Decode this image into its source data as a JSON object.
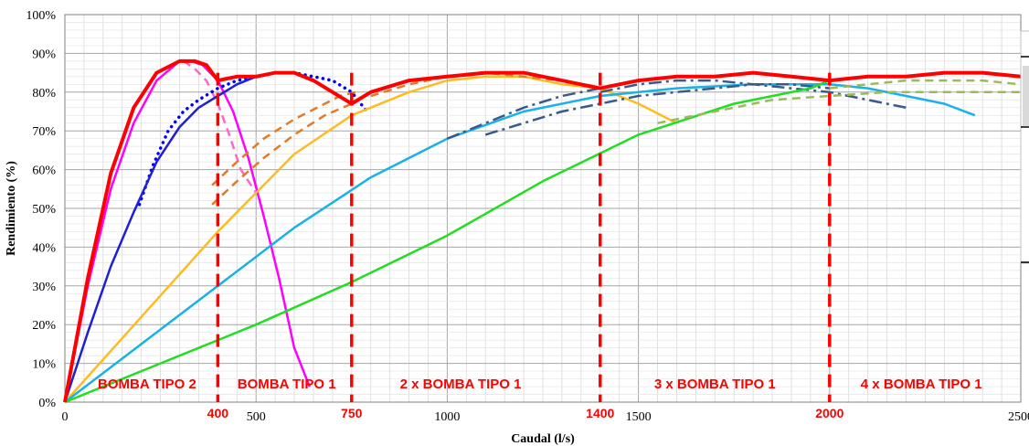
{
  "chart_data": {
    "type": "line",
    "xlabel": "Caudal (l/s)",
    "ylabel": "Rendimiento (%)",
    "xlim": [
      0,
      2500
    ],
    "ylim": [
      0,
      100
    ],
    "x_ticks": [
      0,
      500,
      1000,
      1500,
      2000,
      2500
    ],
    "y_ticks": [
      0,
      10,
      20,
      30,
      40,
      50,
      60,
      70,
      80,
      90,
      100
    ],
    "y_tick_format": "%",
    "grid": true,
    "vertical_markers": [
      {
        "x": 400,
        "label": "400"
      },
      {
        "x": 750,
        "label": "750"
      },
      {
        "x": 1400,
        "label": "1400"
      },
      {
        "x": 2000,
        "label": "2000"
      }
    ],
    "regions": [
      {
        "label": "BOMBA TIPO 2",
        "x_center": 215
      },
      {
        "label": "BOMBA TIPO 1",
        "x_center": 580
      },
      {
        "label": "2 x BOMBA TIPO 1",
        "x_center": 1035
      },
      {
        "label": "3 x BOMBA TIPO 1",
        "x_center": 1700
      },
      {
        "label": "4 x BOMBA TIPO 1",
        "x_center": 2240
      }
    ],
    "series": [
      {
        "color": "#ff00ff",
        "style": "solid",
        "width": 2.5,
        "x": [
          0,
          60,
          120,
          180,
          240,
          300,
          330,
          360,
          400,
          440,
          480,
          520,
          560,
          600,
          640
        ],
        "y": [
          0,
          30,
          55,
          72,
          83,
          88,
          88,
          87,
          83,
          75,
          63,
          48,
          32,
          14,
          4
        ]
      },
      {
        "color": "#ff66cc",
        "style": "dash",
        "width": 2.5,
        "x": [
          310,
          340,
          370,
          400,
          430,
          460,
          500
        ],
        "y": [
          88,
          86,
          83,
          77,
          69,
          60,
          54
        ]
      },
      {
        "color": "#0000ff",
        "style": "dots",
        "width": 3.5,
        "x": [
          195,
          230,
          270,
          310,
          350,
          400,
          450,
          500,
          550,
          600,
          650,
          700,
          750,
          790
        ],
        "y": [
          51,
          61,
          70,
          75,
          78,
          81,
          83,
          84,
          85,
          85,
          84,
          83,
          80,
          75
        ]
      },
      {
        "color": "#1f1fd6",
        "style": "solid",
        "width": 2.5,
        "x": [
          0,
          60,
          120,
          180,
          240,
          300,
          350,
          400,
          450,
          500,
          550
        ],
        "y": [
          0,
          18,
          35,
          49,
          62,
          71,
          76,
          79,
          82,
          84,
          85
        ]
      },
      {
        "color": "#ffbb22",
        "style": "solid",
        "width": 2.5,
        "x": [
          0,
          200,
          400,
          600,
          750,
          900,
          1000,
          1100,
          1200,
          1300,
          1400,
          1500,
          1600
        ],
        "y": [
          0,
          22,
          44,
          64,
          74,
          80,
          83,
          84,
          84,
          82,
          81,
          77,
          72
        ]
      },
      {
        "color": "#e07b2a",
        "style": "dash",
        "width": 2.5,
        "x": [
          385,
          450,
          520,
          600,
          680,
          750
        ],
        "y": [
          51,
          57,
          63,
          69,
          74,
          77
        ]
      },
      {
        "color": "#e07b2a",
        "style": "dash",
        "width": 2.5,
        "x": [
          385,
          450,
          520,
          600,
          680,
          720,
          760
        ],
        "y": [
          56,
          62,
          68,
          73,
          77,
          79,
          80
        ]
      },
      {
        "color": "#e07b2a",
        "style": "dash",
        "width": 2.5,
        "x": [
          800,
          900,
          1000,
          1100,
          1200,
          1300,
          1400
        ],
        "y": [
          79,
          82,
          84,
          85,
          84,
          83,
          81
        ]
      },
      {
        "color": "#1ab0e8",
        "style": "solid",
        "width": 2.5,
        "x": [
          0,
          200,
          400,
          600,
          800,
          1000,
          1200,
          1400,
          1600,
          1800,
          2000,
          2100,
          2200,
          2300,
          2380
        ],
        "y": [
          0,
          15,
          30,
          45,
          58,
          68,
          75,
          79,
          81,
          82,
          82,
          81,
          79,
          77,
          74
        ]
      },
      {
        "color": "#3a5a8c",
        "style": "dashdot",
        "width": 2.5,
        "x": [
          1000,
          1100,
          1200,
          1300,
          1400
        ],
        "y": [
          68,
          72,
          76,
          79,
          81
        ]
      },
      {
        "color": "#3a5a8c",
        "style": "dashdot",
        "width": 2.5,
        "x": [
          1100,
          1200,
          1300,
          1400,
          1500,
          1600,
          1700,
          1800,
          1900,
          2000
        ],
        "y": [
          69,
          72,
          75,
          77,
          79,
          80,
          81,
          82,
          82,
          81
        ]
      },
      {
        "color": "#3a5a8c",
        "style": "dashdot",
        "width": 2.5,
        "x": [
          1400,
          1500,
          1600,
          1700,
          1800,
          1900,
          2000,
          2100,
          2200
        ],
        "y": [
          80,
          82,
          83,
          83,
          82,
          81,
          80,
          78,
          76
        ]
      },
      {
        "color": "#22dd22",
        "style": "solid",
        "width": 2.5,
        "x": [
          0,
          250,
          500,
          750,
          1000,
          1250,
          1500,
          1750,
          1950,
          2000
        ],
        "y": [
          0,
          10,
          20,
          31,
          43,
          57,
          69,
          77,
          81,
          83
        ]
      },
      {
        "color": "#9bbb59",
        "style": "dash",
        "width": 2.5,
        "x": [
          1550,
          1700,
          1850,
          2000,
          2150,
          2300,
          2500
        ],
        "y": [
          72,
          75,
          78,
          79,
          80,
          80,
          80
        ]
      },
      {
        "color": "#9bbb59",
        "style": "dash",
        "width": 2.5,
        "x": [
          2000,
          2100,
          2200,
          2300,
          2400,
          2500
        ],
        "y": [
          81,
          82,
          83,
          83,
          83,
          82
        ]
      },
      {
        "color": "#ff0000",
        "style": "solid",
        "width": 4,
        "x": [
          0,
          60,
          120,
          180,
          240,
          300,
          340,
          370,
          400,
          450,
          500,
          550,
          600,
          650,
          700,
          750,
          800,
          900,
          1000,
          1100,
          1200,
          1300,
          1400,
          1500,
          1600,
          1700,
          1800,
          1900,
          2000,
          2100,
          2200,
          2300,
          2400,
          2500
        ],
        "y": [
          0,
          32,
          59,
          76,
          85,
          88,
          88,
          87,
          83,
          84,
          84,
          85,
          85,
          83,
          80,
          77,
          80,
          83,
          84,
          85,
          85,
          83,
          81,
          83,
          84,
          84,
          85,
          84,
          83,
          84,
          84,
          85,
          85,
          84
        ]
      }
    ]
  }
}
